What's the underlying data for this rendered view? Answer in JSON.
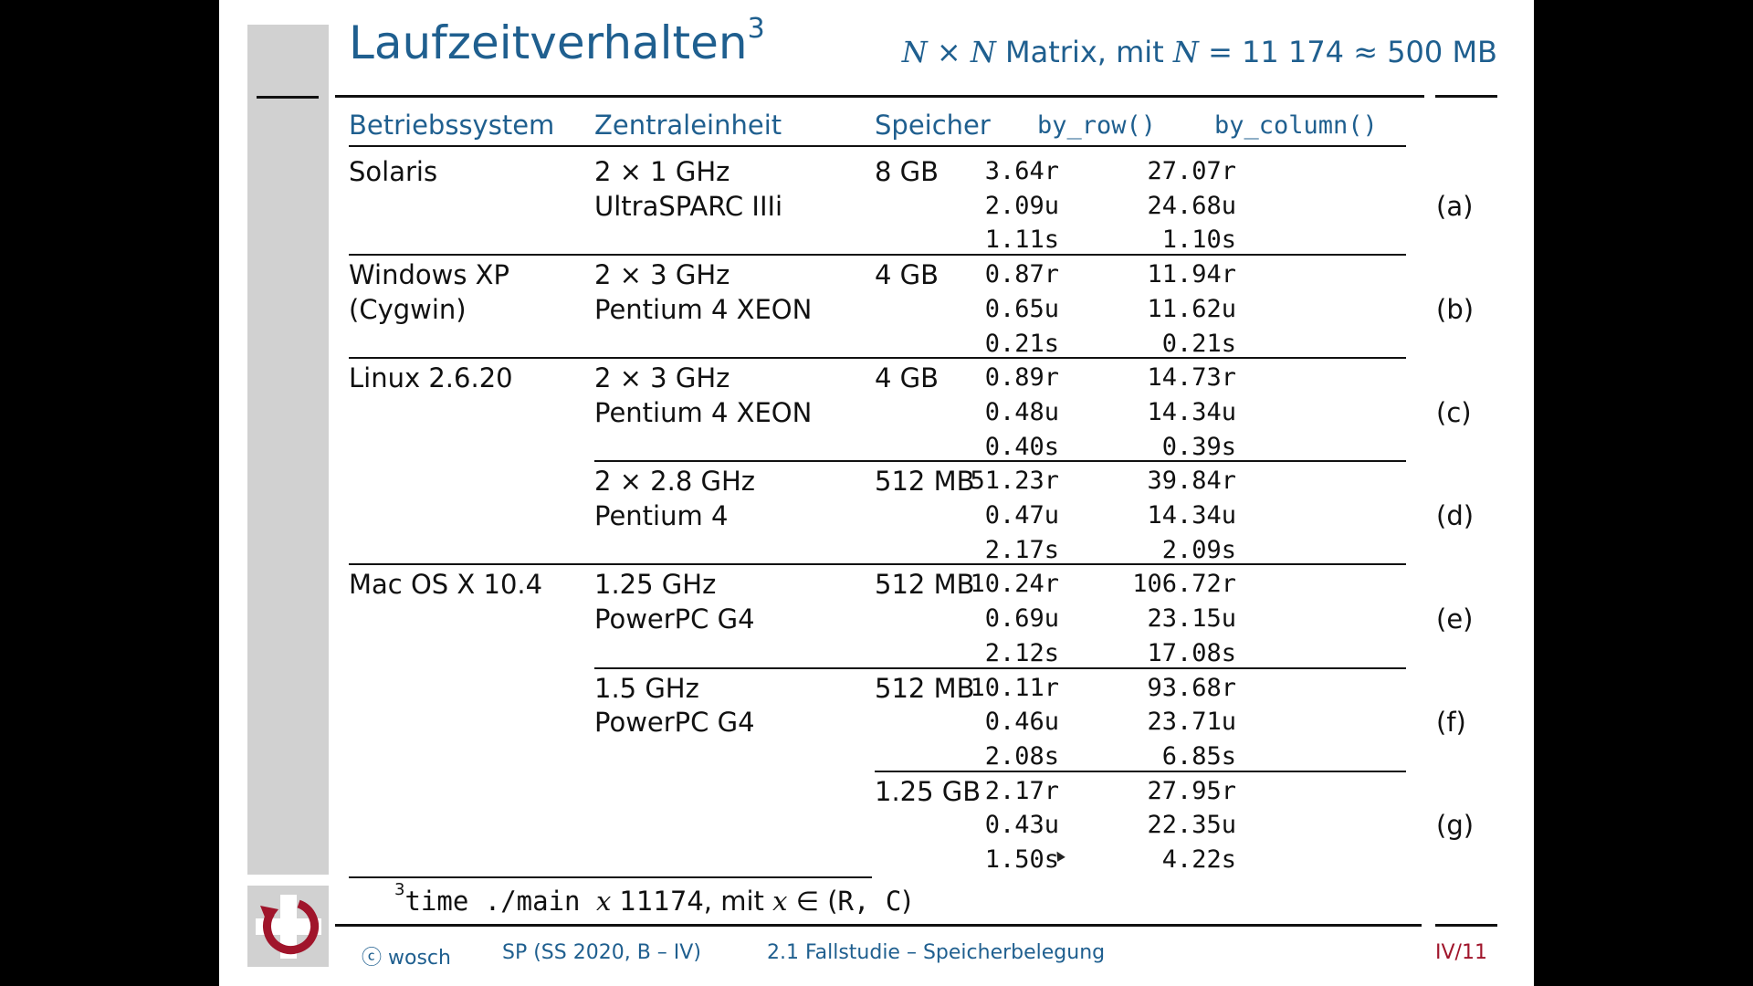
{
  "slide": {
    "title": "Laufzeitverhalten",
    "title_sup": "3",
    "subtitle_pre": "N",
    "subtitle_times": " × ",
    "subtitle_n2": "N",
    "subtitle_matrix": " Matrix, mit ",
    "subtitle_n3": "N",
    "subtitle_eq": " = 11 174 ≈ 500 MB"
  },
  "table": {
    "headers": [
      "Betriebssystem",
      "Zentraleinheit",
      "Speicher",
      "by_row()",
      "by_column()"
    ],
    "groups": [
      {
        "os": [
          "Solaris"
        ],
        "cpu": [
          "2 × 1 GHz",
          "UltraSPARC IIIi"
        ],
        "mem": "8 GB",
        "row": [
          "3.64r",
          "2.09u",
          "1.11s"
        ],
        "col": [
          "27.07r",
          "24.68u",
          "1.10s"
        ],
        "tag": "(a)"
      },
      {
        "os": [
          "Windows XP",
          "(Cygwin)"
        ],
        "cpu": [
          "2 × 3 GHz",
          "Pentium 4 XEON"
        ],
        "mem": "4 GB",
        "row": [
          "0.87r",
          "0.65u",
          "0.21s"
        ],
        "col": [
          "11.94r",
          "11.62u",
          "0.21s"
        ],
        "tag": "(b)"
      },
      {
        "os": [
          "Linux 2.6.20"
        ],
        "cpu": [
          "2 × 3 GHz",
          "Pentium 4 XEON"
        ],
        "mem": "4 GB",
        "row": [
          "0.89r",
          "0.48u",
          "0.40s"
        ],
        "col": [
          "14.73r",
          "14.34u",
          "0.39s"
        ],
        "tag": "(c)"
      },
      {
        "os": [],
        "cpu": [
          "2 × 2.8 GHz",
          "Pentium 4"
        ],
        "mem": "512 MB",
        "row": [
          "51.23r",
          "0.47u",
          "2.17s"
        ],
        "col": [
          "39.84r",
          "14.34u",
          "2.09s"
        ],
        "tag": "(d)"
      },
      {
        "os": [
          "Mac OS X 10.4"
        ],
        "cpu": [
          "1.25 GHz",
          "PowerPC G4"
        ],
        "mem": "512 MB",
        "row": [
          "10.24r",
          "0.69u",
          "2.12s"
        ],
        "col": [
          "106.72r",
          "23.15u",
          "17.08s"
        ],
        "tag": "(e)"
      },
      {
        "os": [],
        "cpu": [
          "1.5 GHz",
          "PowerPC G4"
        ],
        "mem": "512 MB",
        "row": [
          "10.11r",
          "0.46u",
          "2.08s"
        ],
        "col": [
          "93.68r",
          "23.71u",
          "6.85s"
        ],
        "tag": "(f)"
      },
      {
        "os": [],
        "cpu": [],
        "mem": "1.25 GB",
        "row": [
          "2.17r",
          "0.43u",
          "1.50s"
        ],
        "col": [
          "27.95r",
          "22.35u",
          "4.22s"
        ],
        "tag": "(g)"
      }
    ]
  },
  "footnote": {
    "sup": "3",
    "cmd": "time ./main ",
    "var1": "x",
    "args": " 11174, mit ",
    "var2": "x",
    "in": " ∈ (",
    "set": "R, C",
    "close": ")"
  },
  "footer": {
    "author": "ⓒ wosch",
    "course": "SP (SS 2020, B – IV)",
    "section": "2.1 Fallstudie – Speicherbelegung",
    "page": "IV/11"
  },
  "colors": {
    "accent": "#1f5f8f",
    "logo": "#a0152b",
    "sidebar": "#d1d1d1"
  }
}
